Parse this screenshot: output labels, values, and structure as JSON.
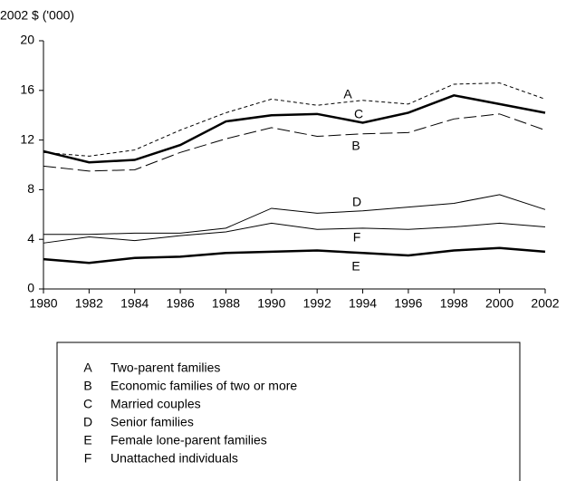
{
  "chart_data": {
    "type": "line",
    "y_axis_label": "2002 $ ('000)",
    "x": [
      1980,
      1982,
      1984,
      1986,
      1988,
      1990,
      1992,
      1994,
      1996,
      1998,
      2000,
      2002
    ],
    "xlim": [
      1980,
      2002
    ],
    "xticks": [
      1980,
      1982,
      1984,
      1986,
      1988,
      1990,
      1992,
      1994,
      1996,
      1998,
      2000,
      2002
    ],
    "ylim": [
      0,
      20
    ],
    "yticks": [
      0,
      4,
      8,
      12,
      16,
      20
    ],
    "series": [
      {
        "key": "A",
        "name": "Two-parent families",
        "color": "#000000",
        "style": "dashed",
        "weight": "normal",
        "values": [
          11.0,
          10.7,
          11.2,
          12.8,
          14.2,
          15.3,
          14.8,
          15.2,
          14.9,
          16.5,
          16.6,
          15.3
        ]
      },
      {
        "key": "B",
        "name": "Economic families of two or more",
        "color": "#000000",
        "style": "long-dashed",
        "weight": "normal",
        "values": [
          9.9,
          9.5,
          9.6,
          11.0,
          12.1,
          13.0,
          12.3,
          12.5,
          12.6,
          13.7,
          14.1,
          12.8
        ]
      },
      {
        "key": "C",
        "name": "Married couples",
        "color": "#000000",
        "style": "solid",
        "weight": "bold",
        "values": [
          11.1,
          10.2,
          10.4,
          11.6,
          13.5,
          14.0,
          14.1,
          13.4,
          14.2,
          15.6,
          14.9,
          14.2
        ]
      },
      {
        "key": "D",
        "name": "Senior families",
        "color": "#000000",
        "style": "solid",
        "weight": "normal",
        "values": [
          4.4,
          4.4,
          4.5,
          4.5,
          4.9,
          6.5,
          6.1,
          6.3,
          6.6,
          6.9,
          7.6,
          6.4
        ]
      },
      {
        "key": "E",
        "name": "Female lone-parent families",
        "color": "#000000",
        "style": "solid",
        "weight": "bold",
        "values": [
          2.4,
          2.1,
          2.5,
          2.6,
          2.9,
          3.0,
          3.1,
          2.9,
          2.7,
          3.1,
          3.3,
          3.0
        ]
      },
      {
        "key": "F",
        "name": "Unattached individuals",
        "color": "#000000",
        "style": "solid",
        "weight": "normal",
        "values": [
          3.7,
          4.2,
          3.9,
          4.3,
          4.6,
          5.3,
          4.8,
          4.9,
          4.8,
          5.0,
          5.3,
          5.0
        ]
      }
    ]
  }
}
